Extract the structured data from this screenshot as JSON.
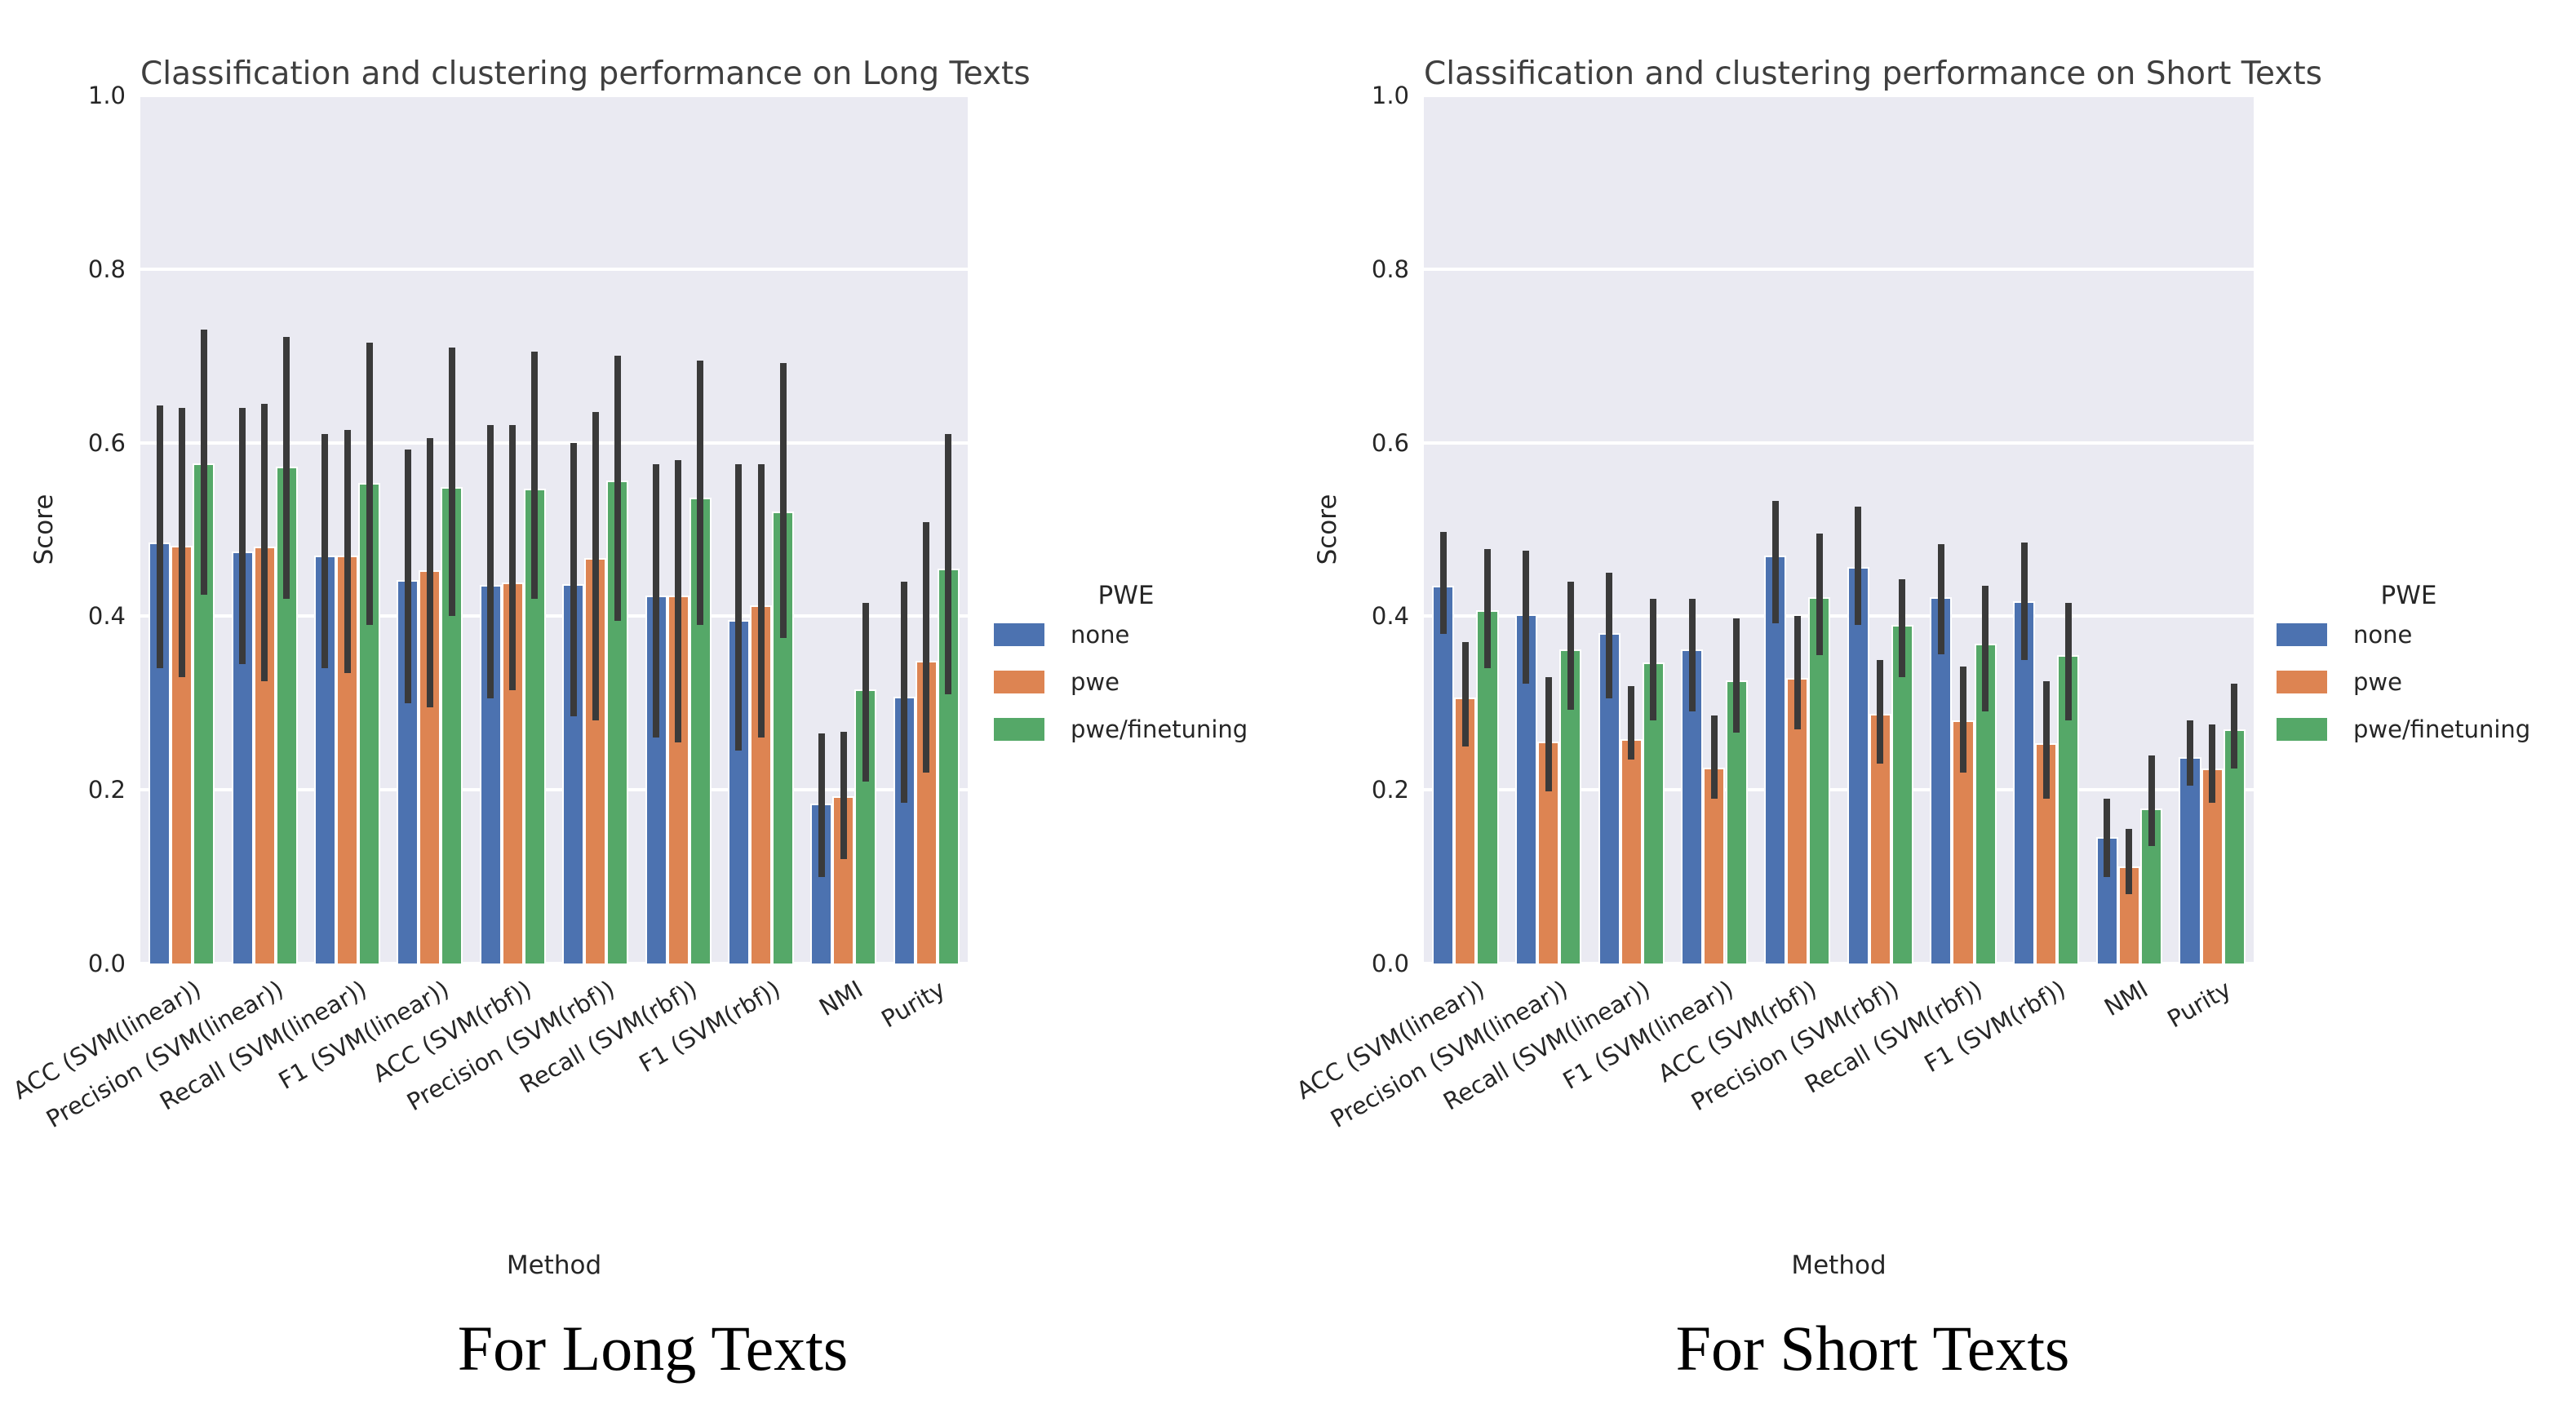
{
  "figure": {
    "captions": {
      "left": "For Long Texts",
      "right": "For Short Texts"
    }
  },
  "palette": {
    "none": "#4c72b0",
    "pwe": "#dd8452",
    "pwe_finetuning": "#55a868",
    "axes_background": "#eaeaf2",
    "grid": "#ffffff",
    "error_bar": "#3a3a3a"
  },
  "legend": {
    "title": "PWE",
    "entries": [
      {
        "label": "none",
        "color": "#4c72b0"
      },
      {
        "label": "pwe",
        "color": "#dd8452"
      },
      {
        "label": "pwe/finetuning",
        "color": "#55a868"
      }
    ]
  },
  "chart_data": [
    {
      "type": "bar",
      "title": "Classification and clustering performance on Long Texts",
      "xlabel": "Method",
      "ylabel": "Score",
      "ylim": [
        0.0,
        1.0
      ],
      "yticks": [
        "0.0",
        "0.2",
        "0.4",
        "0.6",
        "0.8",
        "1.0"
      ],
      "grid": true,
      "legend_position": "right",
      "caption": "For Long Texts",
      "categories": [
        "ACC (SVM(linear))",
        "Precision (SVM(linear))",
        "Recall (SVM(linear))",
        "F1 (SVM(linear))",
        "ACC (SVM(rbf))",
        "Precision (SVM(rbf))",
        "Recall (SVM(rbf))",
        "F1 (SVM(rbf))",
        "NMI",
        "Purity"
      ],
      "series": [
        {
          "name": "none",
          "color": "#4c72b0",
          "values": [
            0.485,
            0.475,
            0.47,
            0.442,
            0.436,
            0.437,
            0.424,
            0.396,
            0.184,
            0.307
          ],
          "err_lo": [
            0.34,
            0.345,
            0.34,
            0.3,
            0.305,
            0.285,
            0.26,
            0.245,
            0.1,
            0.185
          ],
          "err_hi": [
            0.643,
            0.64,
            0.61,
            0.592,
            0.62,
            0.6,
            0.575,
            0.575,
            0.265,
            0.44
          ]
        },
        {
          "name": "pwe",
          "color": "#dd8452",
          "values": [
            0.481,
            0.48,
            0.47,
            0.453,
            0.439,
            0.467,
            0.424,
            0.413,
            0.193,
            0.349
          ],
          "err_lo": [
            0.33,
            0.325,
            0.335,
            0.295,
            0.315,
            0.28,
            0.255,
            0.26,
            0.12,
            0.22
          ],
          "err_hi": [
            0.64,
            0.645,
            0.615,
            0.605,
            0.62,
            0.635,
            0.58,
            0.575,
            0.267,
            0.508
          ]
        },
        {
          "name": "pwe/finetuning",
          "color": "#55a868",
          "values": [
            0.576,
            0.572,
            0.554,
            0.549,
            0.547,
            0.556,
            0.537,
            0.521,
            0.316,
            0.455
          ],
          "err_lo": [
            0.425,
            0.42,
            0.39,
            0.4,
            0.42,
            0.395,
            0.39,
            0.375,
            0.21,
            0.31
          ],
          "err_hi": [
            0.73,
            0.722,
            0.715,
            0.71,
            0.705,
            0.7,
            0.695,
            0.692,
            0.415,
            0.61
          ]
        }
      ]
    },
    {
      "type": "bar",
      "title": "Classification and clustering performance on Short Texts",
      "xlabel": "Method",
      "ylabel": "Score",
      "ylim": [
        0.0,
        1.0
      ],
      "yticks": [
        "0.0",
        "0.2",
        "0.4",
        "0.6",
        "0.8",
        "1.0"
      ],
      "grid": true,
      "legend_position": "right",
      "caption": "For Short Texts",
      "categories": [
        "ACC (SVM(linear))",
        "Precision (SVM(linear))",
        "Recall (SVM(linear))",
        "F1 (SVM(linear))",
        "ACC (SVM(rbf))",
        "Precision (SVM(rbf))",
        "Recall (SVM(rbf))",
        "F1 (SVM(rbf))",
        "NMI",
        "Purity"
      ],
      "series": [
        {
          "name": "none",
          "color": "#4c72b0",
          "values": [
            0.435,
            0.402,
            0.381,
            0.362,
            0.47,
            0.457,
            0.422,
            0.417,
            0.146,
            0.238
          ],
          "err_lo": [
            0.38,
            0.322,
            0.305,
            0.29,
            0.392,
            0.39,
            0.356,
            0.35,
            0.1,
            0.205
          ],
          "err_hi": [
            0.497,
            0.476,
            0.45,
            0.42,
            0.533,
            0.526,
            0.483,
            0.485,
            0.19,
            0.28
          ]
        },
        {
          "name": "pwe",
          "color": "#dd8452",
          "values": [
            0.306,
            0.256,
            0.258,
            0.226,
            0.329,
            0.288,
            0.28,
            0.254,
            0.112,
            0.225
          ],
          "err_lo": [
            0.25,
            0.198,
            0.235,
            0.19,
            0.27,
            0.23,
            0.22,
            0.19,
            0.08,
            0.185
          ],
          "err_hi": [
            0.37,
            0.33,
            0.32,
            0.286,
            0.4,
            0.35,
            0.342,
            0.325,
            0.155,
            0.275
          ]
        },
        {
          "name": "pwe/finetuning",
          "color": "#55a868",
          "values": [
            0.407,
            0.362,
            0.347,
            0.326,
            0.422,
            0.39,
            0.368,
            0.355,
            0.179,
            0.27
          ],
          "err_lo": [
            0.34,
            0.292,
            0.28,
            0.266,
            0.355,
            0.33,
            0.29,
            0.28,
            0.135,
            0.225
          ],
          "err_hi": [
            0.477,
            0.44,
            0.42,
            0.398,
            0.495,
            0.443,
            0.435,
            0.415,
            0.24,
            0.322
          ]
        }
      ]
    }
  ]
}
